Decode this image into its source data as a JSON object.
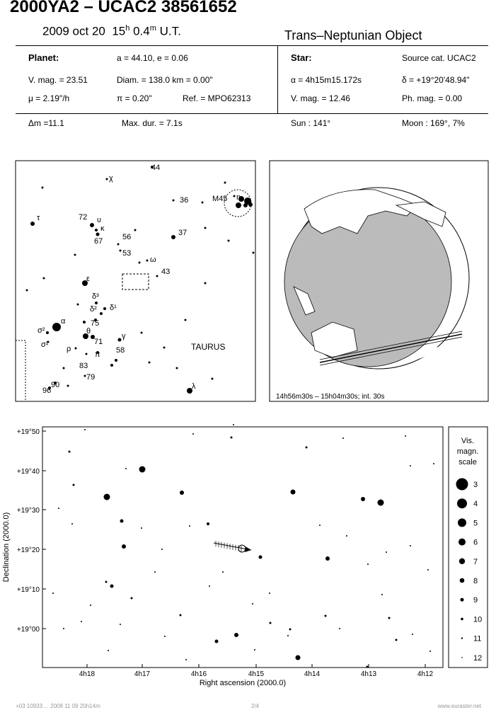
{
  "header": {
    "title": "2000YA2  –  UCAC2 38561652",
    "date": "2009 oct 20",
    "time_parts": [
      "15",
      "h",
      "0.4",
      "m"
    ],
    "time_zone": "U.T.",
    "object_type": "Trans–Neptunian Object"
  },
  "planet": {
    "label": "Planet:",
    "orbit": "a = 44.10, e = 0.06",
    "vmag": "V. mag. = 23.51",
    "diam": "Diam. = 138.0 km = 0.00\"",
    "motion": "μ = 2.19\"/h",
    "parallax": "π = 0.20\"",
    "ref": "Ref. = MPO62313"
  },
  "star": {
    "label": "Star:",
    "source": "Source cat.  UCAC2",
    "ra": "α = 4h15m15.172s",
    "dec": "δ = +19°20'48.94\"",
    "vmag": "V. mag. = 12.46",
    "phmag": "Ph. mag. =  0.00"
  },
  "event": {
    "dmag": "Δm =11.1",
    "maxdur": "Max. dur. = 7.1s",
    "sun": "Sun : 141°",
    "moon": "Moon : 169°,  7%"
  },
  "finder": {
    "labels": [
      "44",
      "χ",
      "36",
      "M45",
      "η",
      "τ",
      "72",
      "υ",
      "κ",
      "67",
      "56",
      "53",
      "ω",
      "37",
      "43",
      "ε",
      "δ³",
      "δ²",
      "δ¹",
      "75",
      "α",
      "σ²",
      "σ¹",
      "θ",
      "71",
      "γ",
      "ρ",
      "π",
      "58",
      "TAURUS",
      "83",
      "79",
      "90",
      "96",
      "λ"
    ]
  },
  "globe": {
    "caption": "14h56m30s – 15h04m30s; int. 30s"
  },
  "chart": {
    "y_ticks": [
      "+19°50",
      "+19°40",
      "+19°30",
      "+19°20",
      "+19°10",
      "+19°00"
    ],
    "x_ticks": [
      "4h18",
      "4h17",
      "4h16",
      "4h15",
      "4h14",
      "4h13",
      "4h12"
    ],
    "x_label": "Right ascension (2000.0)",
    "y_label": "Declination (2000.0)"
  },
  "legend": {
    "title": [
      "Vis.",
      "magn.",
      "scale"
    ],
    "mags": [
      "3",
      "4",
      "5",
      "6",
      "7",
      "8",
      "9",
      "10",
      "11",
      "12"
    ]
  },
  "footer": {
    "left": "+03 10933 ... 2008 11 09 20h14m",
    "center": "2/4",
    "right": "www.euraster.net"
  }
}
